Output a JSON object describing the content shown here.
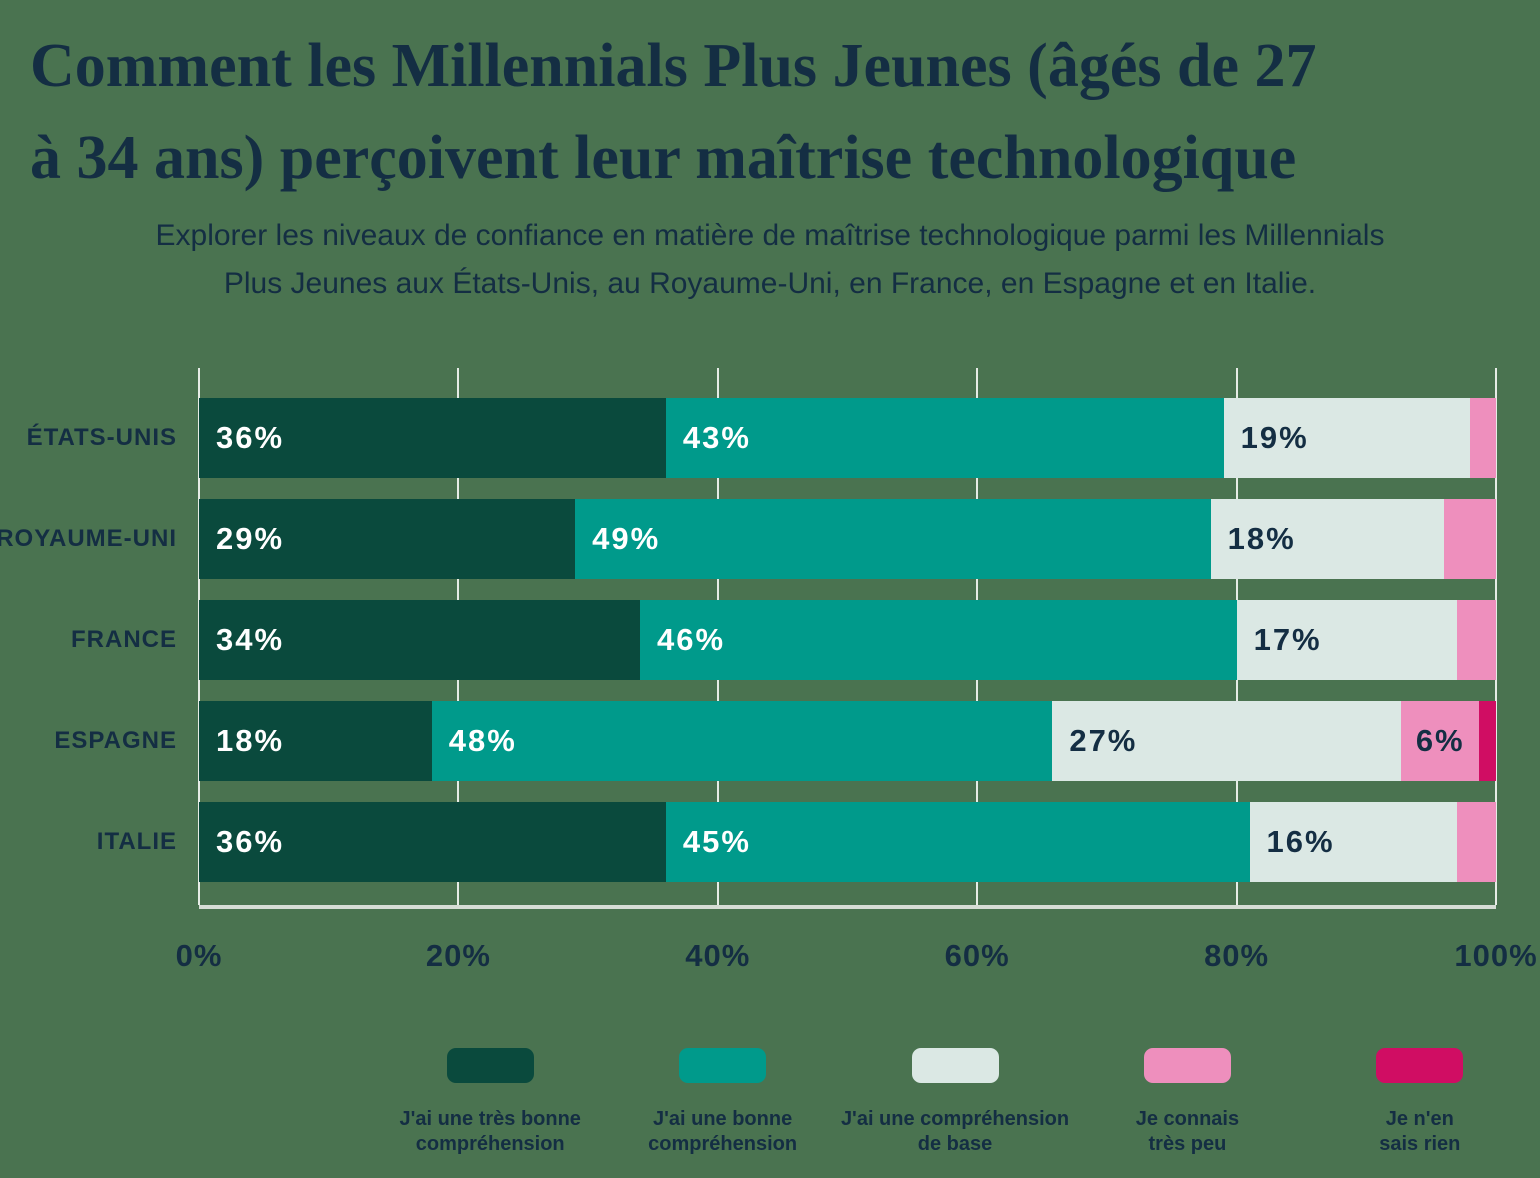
{
  "header": {
    "title": "Comment les Millennials Plus Jeunes (âgés de 27 à 34 ans) perçoivent leur maîtrise technologique",
    "title_lines": [
      "Comment les Millennials Plus Jeunes (âgés de 27",
      "à 34 ans) perçoivent leur maîtrise technologique"
    ],
    "subtitle_lines": [
      "Explorer les niveaux de confiance en matière de maîtrise technologique parmi les Millennials",
      "Plus Jeunes aux États-Unis, au Royaume-Uni, en France, en Espagne et en Italie."
    ]
  },
  "chart_data": {
    "type": "bar",
    "variant": "horizontal-stacked",
    "title": "Comment les Millennials Plus Jeunes (âgés de 27 à 34 ans) perçoivent leur maîtrise technologique",
    "categories": [
      "ÉTATS-UNIS",
      "ROYAUME-UNI",
      "FRANCE",
      "ESPAGNE",
      "ITALIE"
    ],
    "series": [
      {
        "name": "J'ai une très bonne compréhension",
        "name_lines": [
          "J'ai une très bonne",
          "compréhension"
        ],
        "color": "#0a4a3d",
        "label_color": "#ffffff",
        "values": [
          36,
          29,
          34,
          18,
          36
        ]
      },
      {
        "name": "J'ai une bonne compréhension",
        "name_lines": [
          "J'ai une bonne",
          "compréhension"
        ],
        "color": "#009a8b",
        "label_color": "#ffffff",
        "values": [
          43,
          49,
          46,
          48,
          45
        ]
      },
      {
        "name": "J'ai une compréhension de base",
        "name_lines": [
          "J'ai une compréhension",
          "de base"
        ],
        "color": "#dbe8e4",
        "label_color": "#142e43",
        "values": [
          19,
          18,
          17,
          27,
          16
        ]
      },
      {
        "name": "Je connais très peu",
        "name_lines": [
          "Je connais",
          "très peu"
        ],
        "color": "#ee8fbd",
        "label_color": "#142e43",
        "values": [
          2,
          4,
          3,
          6,
          3
        ]
      },
      {
        "name": "Je n'en sais rien",
        "name_lines": [
          "Je n'en",
          "sais rien"
        ],
        "color": "#d00d63",
        "label_color": "#142e43",
        "values": [
          0,
          0,
          0,
          1,
          0
        ]
      }
    ],
    "x_ticks": [
      "0%",
      "20%",
      "40%",
      "60%",
      "80%",
      "100%"
    ],
    "xlim": [
      0,
      100
    ],
    "value_suffix": "%",
    "label_min_value": 6,
    "grid": true,
    "legend_position": "bottom"
  },
  "colors": {
    "background": "#4a7350",
    "text": "#142e43",
    "gridline": "#e6ece6",
    "axis_line": "#d6ddd6"
  }
}
